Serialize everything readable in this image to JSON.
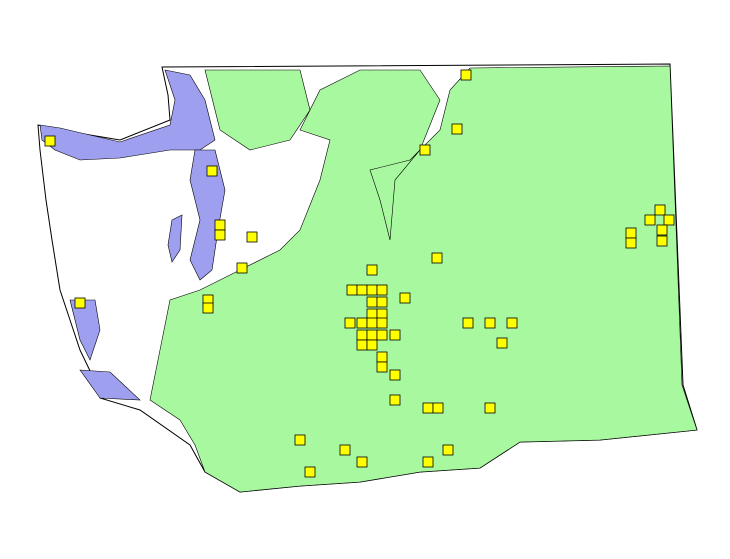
{
  "map": {
    "colors": {
      "background": "#ffffff",
      "land": "#ffffff",
      "vegetation": "#a8f8a0",
      "water": "#9f9ff0",
      "marker": "#ffff00",
      "outline": "#000000"
    },
    "marker_shape": "square"
  }
}
